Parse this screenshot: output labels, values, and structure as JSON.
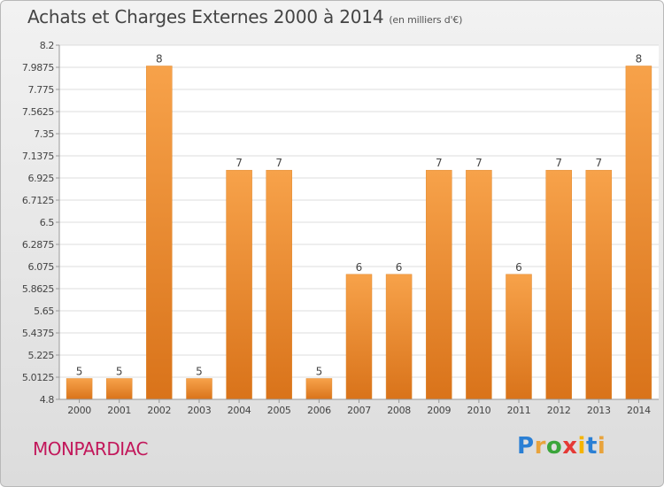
{
  "title": "Achats et Charges Externes 2000 à 2014",
  "subtitle": "(en milliers d'€)",
  "commune": "MONPARDIAC",
  "logo": {
    "letters": [
      "P",
      "r",
      "o",
      "x",
      "i",
      "t",
      "i"
    ],
    "colors": [
      "#2a7fd4",
      "#e8a33c",
      "#3aa53a",
      "#e53935",
      "#f5b400",
      "#2a7fd4",
      "#e8a33c"
    ]
  },
  "chart_data": {
    "type": "bar",
    "categories": [
      "2000",
      "2001",
      "2002",
      "2003",
      "2004",
      "2005",
      "2006",
      "2007",
      "2008",
      "2009",
      "2010",
      "2011",
      "2012",
      "2013",
      "2014"
    ],
    "values": [
      5,
      5,
      8,
      5,
      7,
      7,
      5,
      6,
      6,
      7,
      7,
      6,
      7,
      7,
      8
    ],
    "data_labels": [
      "5",
      "5",
      "8",
      "5",
      "7",
      "7",
      "5",
      "6",
      "6",
      "7",
      "7",
      "6",
      "7",
      "7",
      "8"
    ],
    "ylim": [
      4.8,
      8.2
    ],
    "yticks": [
      "4.8",
      "5.0125",
      "5.225",
      "5.4375",
      "5.65",
      "5.8625",
      "6.075",
      "6.2875",
      "6.5",
      "6.7125",
      "6.925",
      "7.1375",
      "7.35",
      "7.5625",
      "7.775",
      "7.9875",
      "8.2"
    ],
    "ytick_values": [
      4.8,
      5.0125,
      5.225,
      5.4375,
      5.65,
      5.8625,
      6.075,
      6.2875,
      6.5,
      6.7125,
      6.925,
      7.1375,
      7.35,
      7.5625,
      7.775,
      7.9875,
      8.2
    ],
    "grid": true,
    "bar_color": "#f0922e"
  }
}
